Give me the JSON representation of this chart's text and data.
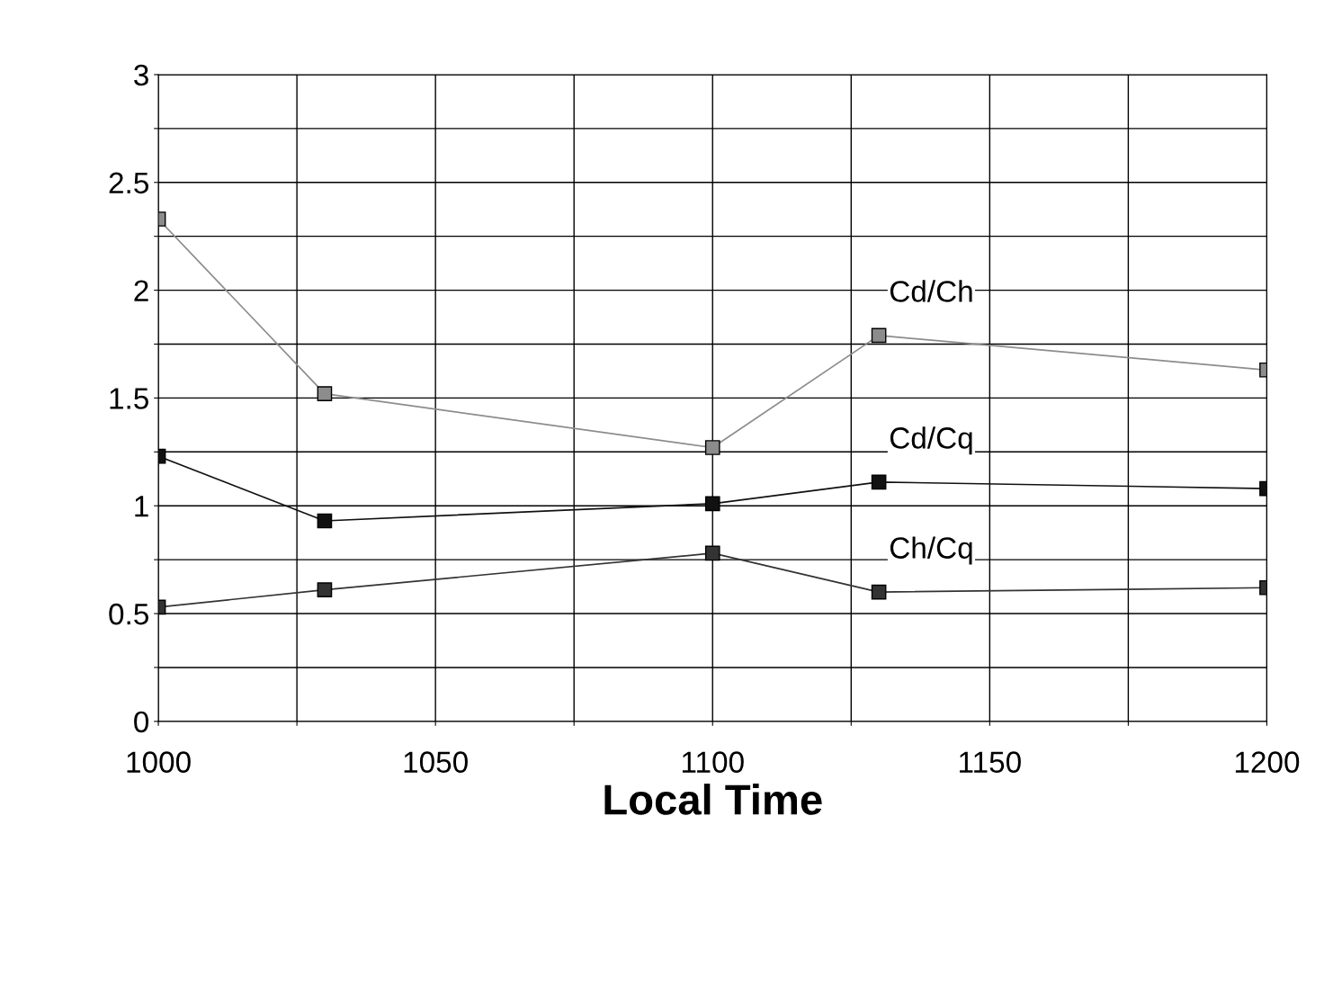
{
  "chart_data": {
    "type": "line",
    "xlabel": "Local Time",
    "x": [
      1000,
      1030,
      1100,
      1130,
      1200
    ],
    "series": [
      {
        "name": "Cd/Ch",
        "color": "#8c8c8c",
        "values": [
          2.33,
          1.52,
          1.27,
          1.79,
          1.63
        ]
      },
      {
        "name": "Cd/Cq",
        "color": "#111111",
        "values": [
          1.23,
          0.93,
          1.01,
          1.11,
          1.08
        ]
      },
      {
        "name": "Ch/Cq",
        "color": "#333333",
        "values": [
          0.53,
          0.61,
          0.78,
          0.6,
          0.62
        ]
      }
    ],
    "xlim": [
      1000,
      1200
    ],
    "xticks": [
      1000,
      {
        "value": 1025,
        "label": null
      },
      1050,
      {
        "value": 1075,
        "label": null
      },
      1100,
      {
        "value": 1125,
        "label": null
      },
      1150,
      {
        "value": 1175,
        "label": null
      },
      1200
    ],
    "ylim": [
      0,
      3
    ],
    "yticks": [
      0,
      {
        "value": 0.25,
        "label": null
      },
      0.5,
      {
        "value": 0.75,
        "label": null
      },
      1,
      {
        "value": 1.25,
        "label": null
      },
      1.5,
      {
        "value": 1.75,
        "label": null
      },
      2,
      {
        "value": 2.25,
        "label": null
      },
      2.5,
      {
        "value": 2.75,
        "label": null
      },
      3
    ],
    "grid": true,
    "legend": false,
    "marker": "square",
    "line_style": "solid"
  }
}
